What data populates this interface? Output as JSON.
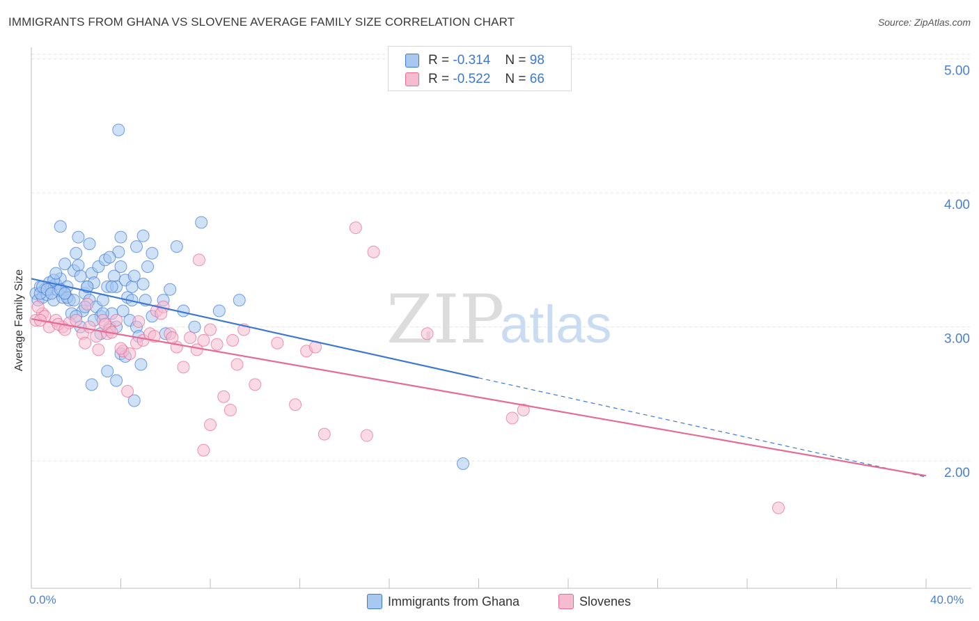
{
  "chart_data": {
    "type": "scatter",
    "title": "IMMIGRANTS FROM GHANA VS SLOVENE AVERAGE FAMILY SIZE CORRELATION CHART",
    "source": "Source: ZipAtlas.com",
    "ylabel": "Average Family Size",
    "x_tick_labels": [
      "0.0%",
      "40.0%"
    ],
    "y_tick_labels": [
      "2.00",
      "3.00",
      "4.00",
      "5.00"
    ],
    "xlim": [
      0,
      40
    ],
    "ylim": [
      1.05,
      5.05
    ],
    "y_ticks": [
      2.0,
      3.0,
      4.0,
      5.0
    ],
    "grid": true,
    "watermark": "ZIPatlas",
    "legend": [
      {
        "r_label": "R =",
        "r_value": "-0.314",
        "n_label": "N =",
        "n_value": "98"
      },
      {
        "r_label": "R =",
        "r_value": "-0.522",
        "n_label": "N =",
        "n_value": "66"
      }
    ],
    "series": [
      {
        "name": "Immigrants from Ghana",
        "color": "#3b78d6",
        "fill": "#a8c8f0",
        "trend": {
          "x0": 0.0,
          "y0": 3.36,
          "x1": 20.0,
          "y1": 2.62,
          "dash_to_x": 40.0,
          "dash_to_y": 1.88
        },
        "points": [
          [
            0.2,
            3.25
          ],
          [
            0.3,
            3.2
          ],
          [
            0.4,
            3.3
          ],
          [
            0.5,
            3.22
          ],
          [
            0.6,
            3.28
          ],
          [
            0.7,
            3.24
          ],
          [
            0.8,
            3.33
          ],
          [
            0.9,
            3.3
          ],
          [
            1.0,
            3.2
          ],
          [
            1.1,
            3.32
          ],
          [
            1.2,
            3.27
          ],
          [
            1.3,
            3.36
          ],
          [
            1.4,
            3.22
          ],
          [
            1.5,
            3.25
          ],
          [
            1.6,
            3.3
          ],
          [
            1.7,
            3.2
          ],
          [
            1.8,
            3.1
          ],
          [
            1.9,
            3.42
          ],
          [
            2.0,
            3.55
          ],
          [
            2.1,
            3.46
          ],
          [
            2.2,
            3.38
          ],
          [
            2.3,
            3.12
          ],
          [
            2.4,
            3.25
          ],
          [
            2.5,
            3.3
          ],
          [
            2.6,
            3.2
          ],
          [
            2.7,
            3.4
          ],
          [
            2.8,
            3.33
          ],
          [
            2.9,
            3.15
          ],
          [
            3.0,
            3.45
          ],
          [
            3.1,
            3.08
          ],
          [
            3.2,
            3.2
          ],
          [
            3.3,
            3.5
          ],
          [
            3.4,
            3.3
          ],
          [
            3.5,
            3.0
          ],
          [
            3.6,
            3.1
          ],
          [
            3.7,
            3.38
          ],
          [
            3.8,
            3.3
          ],
          [
            3.9,
            3.56
          ],
          [
            4.0,
            3.45
          ],
          [
            4.1,
            3.12
          ],
          [
            4.2,
            3.35
          ],
          [
            4.3,
            3.22
          ],
          [
            4.4,
            3.05
          ],
          [
            4.5,
            3.3
          ],
          [
            4.6,
            3.38
          ],
          [
            4.7,
            3.0
          ],
          [
            4.8,
            2.93
          ],
          [
            4.9,
            2.72
          ],
          [
            5.0,
            3.68
          ],
          [
            5.1,
            3.2
          ],
          [
            1.3,
            3.75
          ],
          [
            2.1,
            3.67
          ],
          [
            2.6,
            3.62
          ],
          [
            3.5,
            3.52
          ],
          [
            4.0,
            3.67
          ],
          [
            5.2,
            3.45
          ],
          [
            1.0,
            3.35
          ],
          [
            1.5,
            3.47
          ],
          [
            2.0,
            3.08
          ],
          [
            2.4,
            3.15
          ],
          [
            0.4,
            3.25
          ],
          [
            0.5,
            3.3
          ],
          [
            0.7,
            3.28
          ],
          [
            0.9,
            3.25
          ],
          [
            1.1,
            3.4
          ],
          [
            1.3,
            3.28
          ],
          [
            1.6,
            3.22
          ],
          [
            1.9,
            3.2
          ],
          [
            2.2,
            3.0
          ],
          [
            2.5,
            3.3
          ],
          [
            2.8,
            3.05
          ],
          [
            3.1,
            2.95
          ],
          [
            3.4,
            2.67
          ],
          [
            3.2,
            3.1
          ],
          [
            3.6,
            3.3
          ],
          [
            3.8,
            3.0
          ],
          [
            4.0,
            2.8
          ],
          [
            4.2,
            2.78
          ],
          [
            4.6,
            2.45
          ],
          [
            2.7,
            2.57
          ],
          [
            3.8,
            2.6
          ],
          [
            4.5,
            3.2
          ],
          [
            5.4,
            3.55
          ],
          [
            5.9,
            3.2
          ],
          [
            6.2,
            3.28
          ],
          [
            6.8,
            3.12
          ],
          [
            7.3,
            3.0
          ],
          [
            7.6,
            3.78
          ],
          [
            8.4,
            3.12
          ],
          [
            9.3,
            3.2
          ],
          [
            4.7,
            3.6
          ],
          [
            5.0,
            3.32
          ],
          [
            5.4,
            3.08
          ],
          [
            6.5,
            3.6
          ],
          [
            6.0,
            2.95
          ],
          [
            3.9,
            4.47
          ],
          [
            19.3,
            1.98
          ],
          [
            1.5,
            3.25
          ]
        ]
      },
      {
        "name": "Slovenes",
        "color": "#e66a94",
        "fill": "#f5bcd0",
        "trend": {
          "x0": 0.0,
          "y0": 3.06,
          "x1": 40.0,
          "y1": 1.89
        },
        "points": [
          [
            0.2,
            3.05
          ],
          [
            0.5,
            3.1
          ],
          [
            0.8,
            3.0
          ],
          [
            1.1,
            3.05
          ],
          [
            1.4,
            3.0
          ],
          [
            1.7,
            3.03
          ],
          [
            2.0,
            3.05
          ],
          [
            2.3,
            2.95
          ],
          [
            2.6,
            3.0
          ],
          [
            2.9,
            2.93
          ],
          [
            3.2,
            3.05
          ],
          [
            3.5,
            2.98
          ],
          [
            3.8,
            3.05
          ],
          [
            4.1,
            2.82
          ],
          [
            4.4,
            2.8
          ],
          [
            4.7,
            2.88
          ],
          [
            5.0,
            2.9
          ],
          [
            5.3,
            2.95
          ],
          [
            5.6,
            3.12
          ],
          [
            5.9,
            3.15
          ],
          [
            6.2,
            2.95
          ],
          [
            6.5,
            2.85
          ],
          [
            6.8,
            2.7
          ],
          [
            7.1,
            2.92
          ],
          [
            7.4,
            2.83
          ],
          [
            7.7,
            2.9
          ],
          [
            8.0,
            2.98
          ],
          [
            8.3,
            2.87
          ],
          [
            8.6,
            2.48
          ],
          [
            8.9,
            2.38
          ],
          [
            9.2,
            2.72
          ],
          [
            9.5,
            2.98
          ],
          [
            10.0,
            2.57
          ],
          [
            11.0,
            2.88
          ],
          [
            11.8,
            2.42
          ],
          [
            12.3,
            2.82
          ],
          [
            12.7,
            2.85
          ],
          [
            13.1,
            2.2
          ],
          [
            15.0,
            2.19
          ],
          [
            14.5,
            3.74
          ],
          [
            15.3,
            3.56
          ],
          [
            17.7,
            2.95
          ],
          [
            22.0,
            2.38
          ],
          [
            21.5,
            2.32
          ],
          [
            33.4,
            1.65
          ],
          [
            7.5,
            3.5
          ],
          [
            8.0,
            2.27
          ],
          [
            7.7,
            2.08
          ],
          [
            3.4,
            2.95
          ],
          [
            4.3,
            2.52
          ],
          [
            2.4,
            2.88
          ],
          [
            1.2,
            3.02
          ],
          [
            0.3,
            3.15
          ],
          [
            0.6,
            3.08
          ],
          [
            1.5,
            2.98
          ],
          [
            2.5,
            3.17
          ],
          [
            3.0,
            2.83
          ],
          [
            3.3,
            3.02
          ],
          [
            3.6,
            2.96
          ],
          [
            4.0,
            2.84
          ],
          [
            4.8,
            3.04
          ],
          [
            5.5,
            2.93
          ],
          [
            5.8,
            3.1
          ],
          [
            6.3,
            2.92
          ],
          [
            0.4,
            3.05
          ],
          [
            9.0,
            2.9
          ]
        ]
      }
    ]
  }
}
